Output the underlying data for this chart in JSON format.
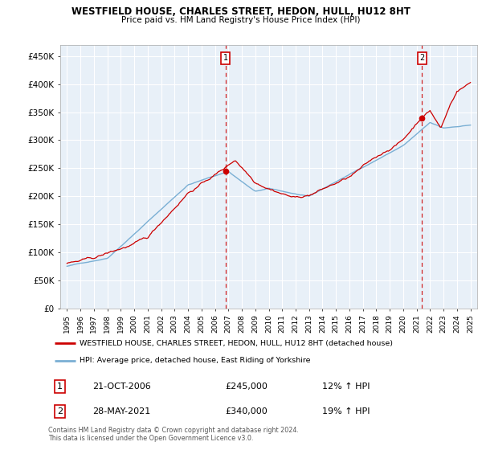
{
  "title": "WESTFIELD HOUSE, CHARLES STREET, HEDON, HULL, HU12 8HT",
  "subtitle": "Price paid vs. HM Land Registry's House Price Index (HPI)",
  "ylim": [
    0,
    470000
  ],
  "yticks": [
    0,
    50000,
    100000,
    150000,
    200000,
    250000,
    300000,
    350000,
    400000,
    450000
  ],
  "ytick_labels": [
    "£0",
    "£50K",
    "£100K",
    "£150K",
    "£200K",
    "£250K",
    "£300K",
    "£350K",
    "£400K",
    "£450K"
  ],
  "xlim_start": 1994.5,
  "xlim_end": 2025.5,
  "xticks": [
    1995,
    1996,
    1997,
    1998,
    1999,
    2000,
    2001,
    2002,
    2003,
    2004,
    2005,
    2006,
    2007,
    2008,
    2009,
    2010,
    2011,
    2012,
    2013,
    2014,
    2015,
    2016,
    2017,
    2018,
    2019,
    2020,
    2021,
    2022,
    2023,
    2024,
    2025
  ],
  "plot_bg_color": "#e8f0f8",
  "grid_color": "#ffffff",
  "sale1_x": 2006.8,
  "sale1_y": 245000,
  "sale2_x": 2021.4,
  "sale2_y": 340000,
  "sale_color": "#cc0000",
  "hpi_color": "#7aafd4",
  "legend_sale_label": "WESTFIELD HOUSE, CHARLES STREET, HEDON, HULL, HU12 8HT (detached house)",
  "legend_hpi_label": "HPI: Average price, detached house, East Riding of Yorkshire",
  "table_row1": [
    "1",
    "21-OCT-2006",
    "£245,000",
    "12% ↑ HPI"
  ],
  "table_row2": [
    "2",
    "28-MAY-2021",
    "£340,000",
    "19% ↑ HPI"
  ],
  "footer": "Contains HM Land Registry data © Crown copyright and database right 2024.\nThis data is licensed under the Open Government Licence v3.0."
}
